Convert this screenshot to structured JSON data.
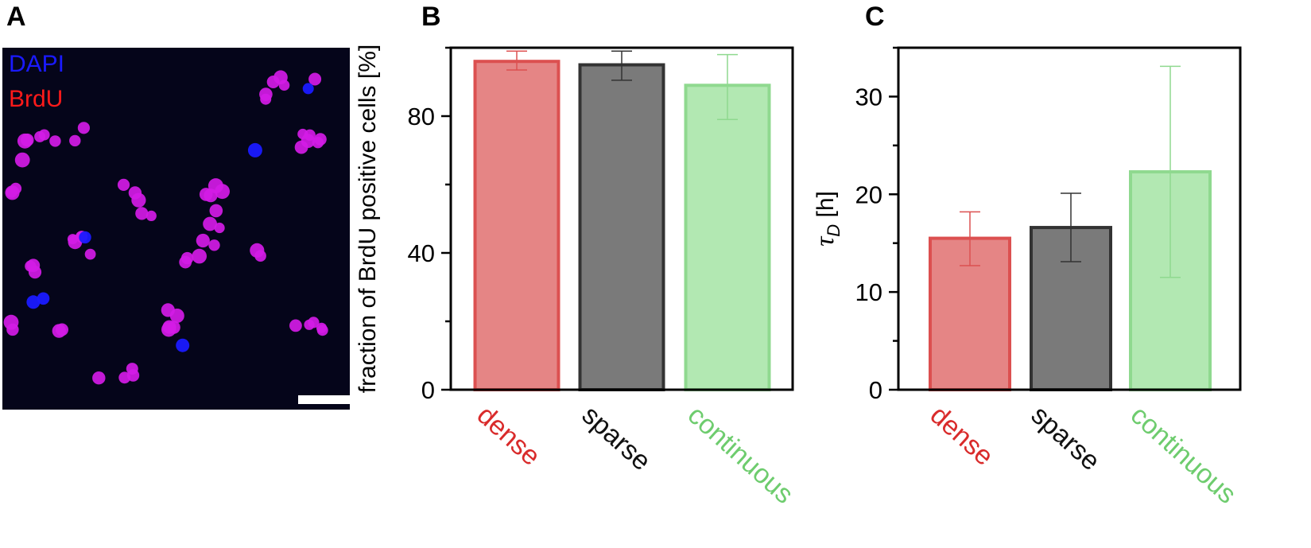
{
  "panels": {
    "a": {
      "letter": "A"
    },
    "b": {
      "letter": "B"
    },
    "c": {
      "letter": "C"
    }
  },
  "micrograph": {
    "stain_1": "DAPI",
    "stain_2": "BrdU",
    "colors": {
      "background": "#05051a",
      "dapi": "#1a1aff",
      "brdu": "#ff1a1a",
      "cell": "#d41be6"
    }
  },
  "chart_data": [
    {
      "type": "bar",
      "panel": "B",
      "categories": [
        "dense",
        "sparse",
        "continuous"
      ],
      "category_colors": [
        "#d92b2b",
        "#111111",
        "#6ecc6e"
      ],
      "values": [
        96,
        95,
        89
      ],
      "errors_low": [
        93.5,
        90.5,
        79
      ],
      "errors_high": [
        99,
        99,
        98
      ],
      "bar_fill_colors": [
        "#e58585",
        "#7a7a7a",
        "#b2e8b2"
      ],
      "bar_edge_colors": [
        "#dc5050",
        "#333333",
        "#8fd98f"
      ],
      "ylabel": "fraction of BrdU positive cells [%]",
      "ylim": [
        0,
        100
      ],
      "yticks": [
        0,
        40,
        80
      ],
      "ytick_labels": [
        "0",
        "40",
        "80"
      ]
    },
    {
      "type": "bar",
      "panel": "C",
      "categories": [
        "dense",
        "sparse",
        "continuous"
      ],
      "category_colors": [
        "#d92b2b",
        "#111111",
        "#6ecc6e"
      ],
      "values": [
        15.5,
        16.6,
        22.3
      ],
      "errors_low": [
        12.7,
        13.1,
        11.5
      ],
      "errors_high": [
        18.2,
        20.1,
        33.1
      ],
      "bar_fill_colors": [
        "#e58585",
        "#7a7a7a",
        "#b2e8b2"
      ],
      "bar_edge_colors": [
        "#dc5050",
        "#333333",
        "#8fd98f"
      ],
      "ylabel_symbol": "τ",
      "ylabel_subscript": "D",
      "ylabel_unit": " [h]",
      "ylim": [
        0,
        35
      ],
      "yticks": [
        0,
        10,
        20,
        30
      ],
      "ytick_labels": [
        "0",
        "10",
        "20",
        "30"
      ]
    }
  ]
}
